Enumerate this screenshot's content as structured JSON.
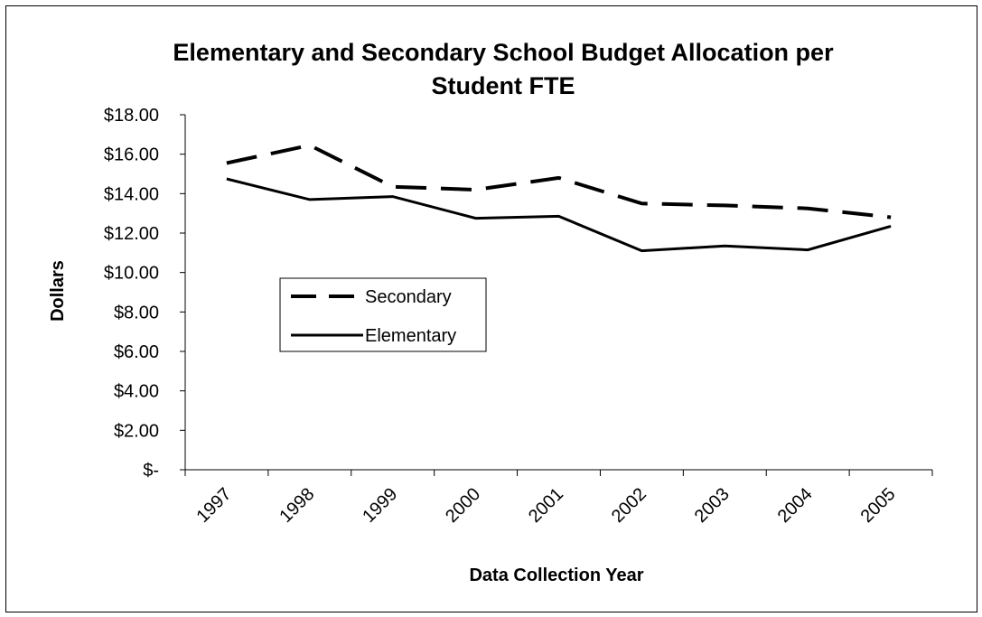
{
  "chart_data": {
    "type": "line",
    "title_line1": "Elementary and Secondary School Budget Allocation per",
    "title_line2": "Student FTE",
    "xlabel": "Data Collection Year",
    "ylabel": "Dollars",
    "categories": [
      "1997",
      "1998",
      "1999",
      "2000",
      "2001",
      "2002",
      "2003",
      "2004",
      "2005"
    ],
    "ylim": [
      0,
      18
    ],
    "yticks": [
      {
        "value": 18,
        "label": "$18.00"
      },
      {
        "value": 16,
        "label": "$16.00"
      },
      {
        "value": 14,
        "label": "$14.00"
      },
      {
        "value": 12,
        "label": "$12.00"
      },
      {
        "value": 10,
        "label": "$10.00"
      },
      {
        "value": 8,
        "label": "$8.00"
      },
      {
        "value": 6,
        "label": "$6.00"
      },
      {
        "value": 4,
        "label": "$4.00"
      },
      {
        "value": 2,
        "label": "$2.00"
      },
      {
        "value": 0,
        "label": "$-"
      }
    ],
    "grid": false,
    "legend_position": "left-middle",
    "series": [
      {
        "name": "Secondary",
        "style": "dashed",
        "color": "#000000",
        "values": [
          15.55,
          16.45,
          14.35,
          14.2,
          14.8,
          13.5,
          13.4,
          13.25,
          12.8
        ]
      },
      {
        "name": "Elementary",
        "style": "solid",
        "color": "#000000",
        "values": [
          14.75,
          13.7,
          13.85,
          12.75,
          12.85,
          11.1,
          11.35,
          11.15,
          12.35
        ]
      }
    ]
  }
}
